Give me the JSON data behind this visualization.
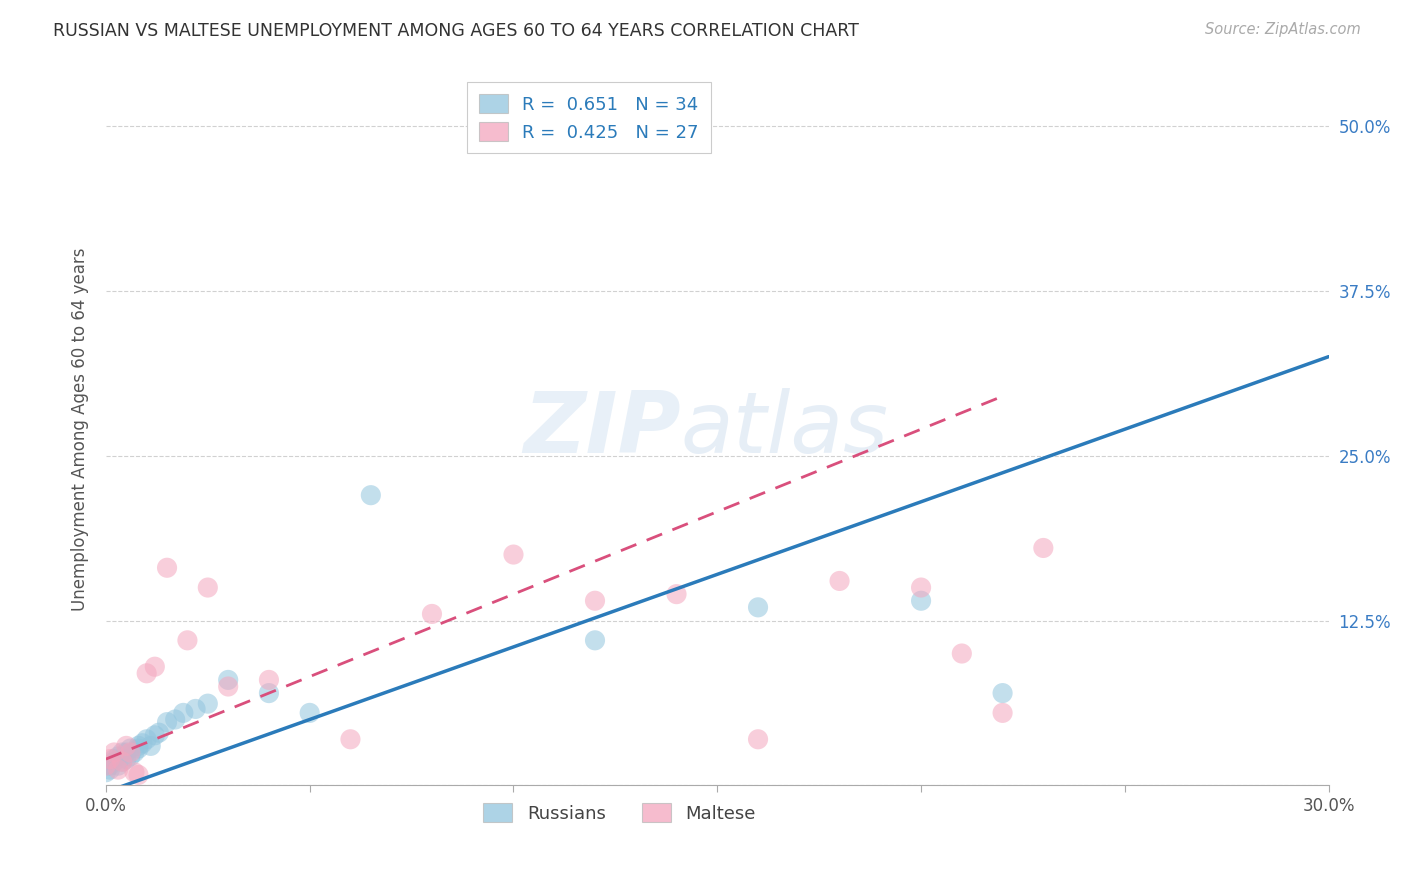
{
  "title": "RUSSIAN VS MALTESE UNEMPLOYMENT AMONG AGES 60 TO 64 YEARS CORRELATION CHART",
  "source": "Source: ZipAtlas.com",
  "ylabel": "Unemployment Among Ages 60 to 64 years",
  "xlim": [
    0.0,
    0.3
  ],
  "ylim": [
    0.0,
    0.54
  ],
  "xticks": [
    0.0,
    0.05,
    0.1,
    0.15,
    0.2,
    0.25,
    0.3
  ],
  "xticklabels": [
    "0.0%",
    "",
    "",
    "",
    "",
    "",
    "30.0%"
  ],
  "ytick_positions": [
    0.0,
    0.125,
    0.25,
    0.375,
    0.5
  ],
  "ytick_labels": [
    "",
    "12.5%",
    "25.0%",
    "37.5%",
    "50.0%"
  ],
  "legend1_R": "0.651",
  "legend1_N": "34",
  "legend2_R": "0.425",
  "legend2_N": "27",
  "watermark_zip": "ZIP",
  "watermark_atlas": "atlas",
  "blue_color": "#92c5de",
  "pink_color": "#f4a6be",
  "blue_line_color": "#2b7bba",
  "pink_line_color": "#d94f7c",
  "russian_x": [
    0.0,
    0.001,
    0.001,
    0.002,
    0.002,
    0.003,
    0.003,
    0.004,
    0.004,
    0.005,
    0.005,
    0.006,
    0.006,
    0.007,
    0.008,
    0.008,
    0.009,
    0.01,
    0.011,
    0.012,
    0.013,
    0.015,
    0.017,
    0.019,
    0.022,
    0.025,
    0.03,
    0.04,
    0.05,
    0.065,
    0.12,
    0.16,
    0.2,
    0.22
  ],
  "russian_y": [
    0.01,
    0.012,
    0.015,
    0.018,
    0.02,
    0.022,
    0.015,
    0.018,
    0.025,
    0.02,
    0.025,
    0.022,
    0.028,
    0.025,
    0.03,
    0.028,
    0.032,
    0.035,
    0.03,
    0.038,
    0.04,
    0.048,
    0.05,
    0.055,
    0.058,
    0.062,
    0.08,
    0.07,
    0.055,
    0.22,
    0.11,
    0.135,
    0.14,
    0.07
  ],
  "maltese_x": [
    0.0,
    0.001,
    0.002,
    0.003,
    0.004,
    0.005,
    0.006,
    0.007,
    0.008,
    0.01,
    0.012,
    0.015,
    0.02,
    0.025,
    0.03,
    0.04,
    0.06,
    0.08,
    0.1,
    0.12,
    0.14,
    0.16,
    0.18,
    0.2,
    0.21,
    0.22,
    0.23
  ],
  "maltese_y": [
    0.015,
    0.02,
    0.025,
    0.012,
    0.018,
    0.03,
    0.025,
    0.01,
    0.008,
    0.085,
    0.09,
    0.165,
    0.11,
    0.15,
    0.075,
    0.08,
    0.035,
    0.13,
    0.175,
    0.14,
    0.145,
    0.035,
    0.155,
    0.15,
    0.1,
    0.055,
    0.18
  ],
  "blue_slope": 1.1,
  "blue_intercept": -0.005,
  "pink_slope": 1.25,
  "pink_intercept": 0.02
}
